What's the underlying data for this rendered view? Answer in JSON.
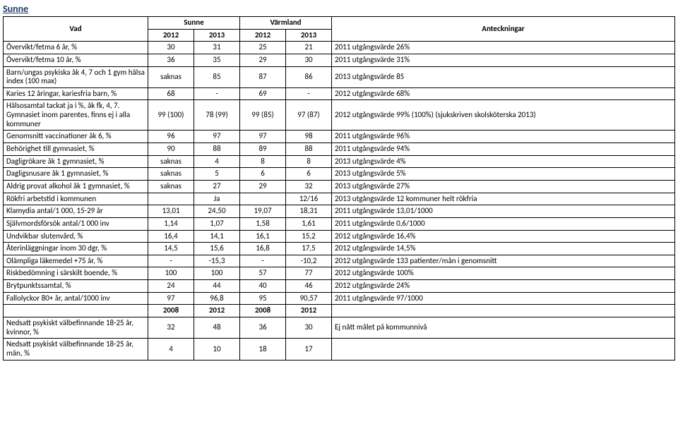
{
  "title": "Sunne",
  "header": {
    "vad": "Vad",
    "g1": "Sunne",
    "g2": "Värmland",
    "note": "Anteckningar"
  },
  "years": {
    "a": "2012",
    "b": "2013",
    "c": "2012",
    "d": "2013"
  },
  "rows": [
    {
      "label": "Övervikt/fetma 6 år, %",
      "a": "30",
      "b": "31",
      "c": "25",
      "d": "21",
      "note": "2011 utgångsvärde 26%"
    },
    {
      "label": "Övervikt/fetma 10 år, %",
      "a": "36",
      "b": "35",
      "c": "29",
      "d": "30",
      "note": "2011 utgångsvärde 31%"
    },
    {
      "label": "Barn/ungas psykiska åk 4, 7 och 1 gym hälsa index (100 max)",
      "a": "saknas",
      "b": "85",
      "c": "87",
      "d": "86",
      "note": "2013 utgångsvärde 85"
    },
    {
      "label": "Karies 12 åringar, kariesfria barn, %",
      "a": "68",
      "b": "-",
      "c": "69",
      "d": "-",
      "note": "2012 utgångsvärde 68%"
    },
    {
      "label": "Hälsosamtal tackat ja i %, åk fk, 4, 7. Gymnasiet inom parentes, finns ej i alla kommuner",
      "a": "99 (100)",
      "b": "78 (99)",
      "c": "99 (85)",
      "d": "97 (87)",
      "note": "2012 utgångsvärde 99% (100%) (sjukskriven skolsköterska 2013)"
    },
    {
      "label": "Genomsnitt vaccinationer åk 6, %",
      "a": "96",
      "b": "97",
      "c": "97",
      "d": "98",
      "note": "2011 utgångsvärde 96%"
    },
    {
      "label": "Behörighet till gymnasiet, %",
      "a": "90",
      "b": "88",
      "c": "89",
      "d": "88",
      "note": "2011 utgångsvärde 94%"
    },
    {
      "label": "Dagligrökare åk 1 gymnasiet, %",
      "a": "saknas",
      "b": "4",
      "c": "8",
      "d": "8",
      "note": "2013 utgångsvärde 4%"
    },
    {
      "label": "Dagligsnusare åk 1 gymnasiet, %",
      "a": "saknas",
      "b": "5",
      "c": "6",
      "d": "6",
      "note": "2013 utgångsvärde 5%"
    },
    {
      "label": "Aldrig provat alkohol åk 1 gymnasiet, %",
      "a": "saknas",
      "b": "27",
      "c": "29",
      "d": "32",
      "note": "2013 utgångsvärde 27%"
    },
    {
      "label": "Rökfri arbetstid i kommunen",
      "a": "",
      "b": "Ja",
      "c": "",
      "d": "12/16",
      "note": "2013 utgångsvärde 12 kommuner helt rökfria"
    },
    {
      "label": "Klamydia antal/1 000, 15-29 år",
      "a": "13,01",
      "b": "24,50",
      "c": "19,07",
      "d": "18,31",
      "note": "2011 utgångsvärde 13,01/1000"
    },
    {
      "label": "Självmordsförsök antal/1 000 inv",
      "a": "1,14",
      "b": "1,07",
      "c": "1,58",
      "d": "1,61",
      "note": "2011 utgångsvärde 0,6/1000"
    },
    {
      "label": "Undvikbar slutenvård, %",
      "a": "16,4",
      "b": "14,1",
      "c": "16,1",
      "d": "15,2",
      "note": "2012 utgångsvärde 16,4%"
    },
    {
      "label": "Återinläggningar inom 30 dgr, %",
      "a": "14,5",
      "b": "15,6",
      "c": "16,8",
      "d": "17,5",
      "note": "2012 utgångsvärde 14,5%"
    },
    {
      "label": "Olämpliga läkemedel +75 år, %",
      "a": "-",
      "b": "-15,3",
      "c": "-",
      "d": "-10,2",
      "note": "2012 utgångsvärde 133 patienter/mån i genomsnitt"
    },
    {
      "label": "Riskbedömning i särskilt boende, %",
      "a": "100",
      "b": "100",
      "c": "57",
      "d": "77",
      "note": "2012 utgångsvärde 100%"
    },
    {
      "label": "Brytpunktssamtal, %",
      "a": "24",
      "b": "44",
      "c": "40",
      "d": "46",
      "note": "2012 utgångsvärde 24%"
    },
    {
      "label": "Fallolyckor 80+ år, antal/1000 inv",
      "a": "97",
      "b": "96,8",
      "c": "95",
      "d": "90,57",
      "note": "2011 utgångsvärde 97/1000"
    }
  ],
  "sub_years": {
    "a": "2008",
    "b": "2012",
    "c": "2008",
    "d": "2012"
  },
  "sub_rows": [
    {
      "label": "Nedsatt psykiskt välbefinnande 18-25 år, kvinnor, %",
      "a": "32",
      "b": "48",
      "c": "36",
      "d": "30",
      "note": "Ej nått målet på kommunnivå"
    },
    {
      "label": "Nedsatt psykiskt välbefinnande 18-25 år, män, %",
      "a": "4",
      "b": "10",
      "c": "18",
      "d": "17",
      "note": ""
    }
  ]
}
